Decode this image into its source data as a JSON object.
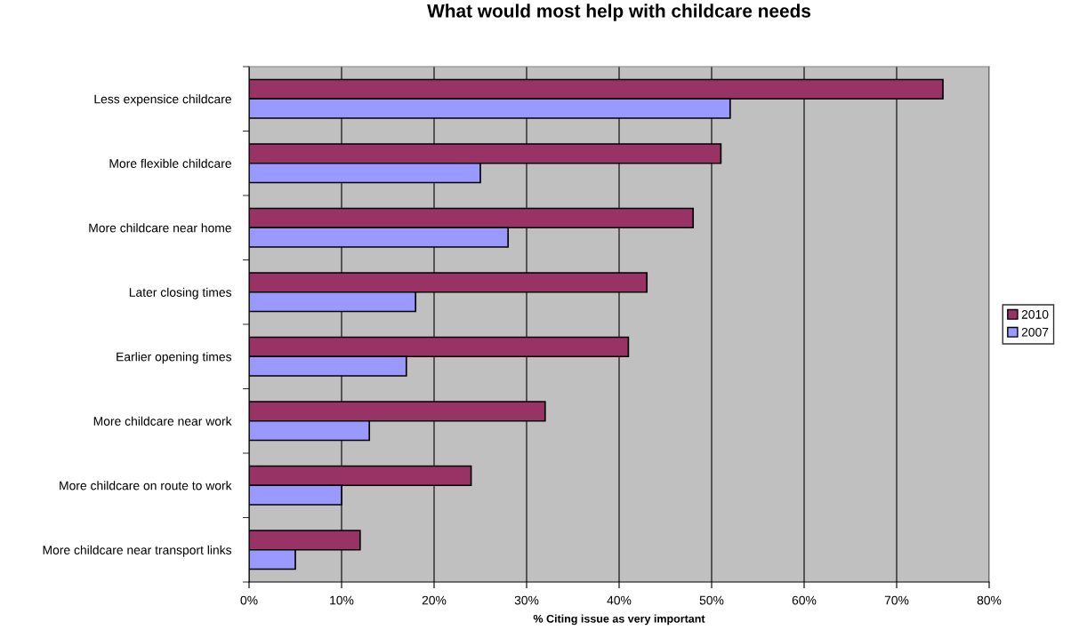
{
  "chart_data": {
    "type": "bar",
    "orientation": "horizontal",
    "title": "What would most help with childcare needs",
    "xlabel": "% Citing issue as very important",
    "categories": [
      "Less expensice childcare",
      "More flexible childcare",
      "More childcare near home",
      "Later closing times",
      "Earlier opening times",
      "More childcare near work",
      "More childcare on route to work",
      "More childcare near transport links"
    ],
    "series": [
      {
        "name": "2010",
        "color": "#993366",
        "values": [
          75,
          51,
          48,
          43,
          41,
          32,
          24,
          12
        ]
      },
      {
        "name": "2007",
        "color": "#9999ff",
        "values": [
          52,
          25,
          28,
          18,
          17,
          13,
          10,
          5
        ]
      }
    ],
    "xlim": [
      0,
      80
    ],
    "xticks": [
      {
        "value": 0,
        "label": "0%"
      },
      {
        "value": 10,
        "label": "10%"
      },
      {
        "value": 20,
        "label": "20%"
      },
      {
        "value": 30,
        "label": "30%"
      },
      {
        "value": 40,
        "label": "40%"
      },
      {
        "value": 50,
        "label": "50%"
      },
      {
        "value": 60,
        "label": "60%"
      },
      {
        "value": 70,
        "label": "70%"
      },
      {
        "value": 80,
        "label": "80%"
      }
    ],
    "grid": "x",
    "legend": "right"
  }
}
